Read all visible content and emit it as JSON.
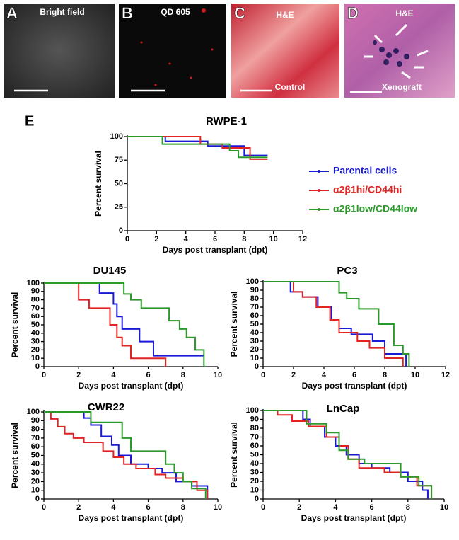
{
  "image_panels": [
    {
      "letter": "A",
      "texts": [
        "Bright field"
      ]
    },
    {
      "letter": "B",
      "texts": [
        "QD 605"
      ]
    },
    {
      "letter": "C",
      "texts": [
        "H&E",
        "Control"
      ]
    },
    {
      "letter": "D",
      "texts": [
        "H&E",
        "Xenograft"
      ]
    }
  ],
  "panel_label": "E",
  "chart_data": [
    {
      "type": "step",
      "title": "RWPE-1",
      "x_label": "Days post transplant (dpt)",
      "y_label": "Percent survival",
      "xlim": [
        0,
        12
      ],
      "xticks": [
        0,
        2,
        4,
        6,
        8,
        10,
        12
      ],
      "ylim": [
        0,
        100
      ],
      "yticks": [
        0,
        25,
        50,
        75,
        100
      ],
      "legend": "right",
      "series": [
        {
          "name": "Parental cells",
          "color": "#1a1ad6",
          "x": [
            0,
            2,
            2.6,
            5,
            5.5,
            7.2,
            8,
            9.6
          ],
          "values": [
            100,
            100,
            95,
            95,
            90,
            90,
            80,
            80
          ]
        },
        {
          "name": "α2β1hi/CD44hi",
          "color": "#e02424",
          "x": [
            0,
            2.5,
            5,
            6.5,
            8.4,
            9.6
          ],
          "values": [
            100,
            100,
            92,
            88,
            76,
            76
          ]
        },
        {
          "name": "α2β1low/CD44low",
          "color": "#2a9a2a",
          "x": [
            0,
            2,
            2.4,
            5,
            7,
            7.6,
            9.6
          ],
          "values": [
            100,
            100,
            92,
            92,
            85,
            78,
            78
          ]
        }
      ]
    },
    {
      "type": "step",
      "title": "DU145",
      "x_label": "Days post transplant (dpt)",
      "y_label": "Percent survival",
      "xlim": [
        0,
        10
      ],
      "xticks": [
        0,
        2,
        4,
        6,
        8,
        10
      ],
      "ylim": [
        0,
        100
      ],
      "yticks": [
        0,
        10,
        20,
        30,
        40,
        50,
        60,
        70,
        80,
        90,
        100
      ],
      "series": [
        {
          "color": "#1a1ad6",
          "x": [
            0,
            3.2,
            4.0,
            4.2,
            4.5,
            5.5,
            6.3,
            9.2
          ],
          "values": [
            100,
            88,
            75,
            60,
            45,
            30,
            13,
            13
          ]
        },
        {
          "color": "#e02424",
          "x": [
            0,
            2.0,
            2.6,
            3.8,
            4.2,
            4.5,
            5.0,
            7.0
          ],
          "values": [
            100,
            80,
            70,
            50,
            35,
            25,
            10,
            0
          ]
        },
        {
          "color": "#2a9a2a",
          "x": [
            0,
            4.6,
            5.0,
            5.6,
            7.2,
            7.8,
            8.2,
            8.7,
            9.2
          ],
          "values": [
            100,
            87,
            80,
            70,
            55,
            45,
            35,
            20,
            0
          ]
        }
      ]
    },
    {
      "type": "step",
      "title": "PC3",
      "x_label": "Days post transplant (dpt)",
      "y_label": "Percent survival",
      "xlim": [
        0,
        12
      ],
      "xticks": [
        0,
        2,
        4,
        6,
        8,
        10,
        12
      ],
      "ylim": [
        0,
        100
      ],
      "yticks": [
        0,
        10,
        20,
        30,
        40,
        50,
        60,
        70,
        80,
        90,
        100
      ],
      "series": [
        {
          "color": "#1a1ad6",
          "x": [
            0,
            1.8,
            2.6,
            3.6,
            4.5,
            5.0,
            5.8,
            7.2,
            8.0,
            9.4
          ],
          "values": [
            100,
            88,
            82,
            70,
            55,
            45,
            38,
            30,
            15,
            0
          ]
        },
        {
          "color": "#e02424",
          "x": [
            0,
            2,
            2.6,
            3.5,
            4.4,
            5.0,
            6.2,
            7.0,
            8.0,
            9.2
          ],
          "values": [
            100,
            88,
            82,
            70,
            55,
            40,
            30,
            22,
            10,
            0
          ]
        },
        {
          "color": "#2a9a2a",
          "x": [
            0,
            5.0,
            5.5,
            6.3,
            7.6,
            8.6,
            9.2,
            9.6
          ],
          "values": [
            100,
            87,
            80,
            68,
            50,
            25,
            15,
            0
          ]
        }
      ]
    },
    {
      "type": "step",
      "title": "CWR22",
      "x_label": "Days post transplant (dpt)",
      "y_label": "Percent survival",
      "xlim": [
        0,
        10
      ],
      "xticks": [
        0,
        2,
        4,
        6,
        8,
        10
      ],
      "ylim": [
        0,
        100
      ],
      "yticks": [
        0,
        10,
        20,
        30,
        40,
        50,
        60,
        70,
        80,
        90,
        100
      ],
      "series": [
        {
          "color": "#1a1ad6",
          "x": [
            0,
            2.3,
            2.7,
            3.3,
            3.9,
            4.3,
            5.0,
            6.0,
            6.8,
            7.6,
            8.5,
            9.4
          ],
          "values": [
            100,
            93,
            85,
            72,
            62,
            50,
            40,
            35,
            30,
            20,
            15,
            0
          ]
        },
        {
          "color": "#e02424",
          "x": [
            0,
            0.4,
            0.8,
            1.2,
            1.7,
            2.3,
            3.4,
            4.0,
            4.6,
            5.3,
            6.4,
            7.0,
            8.0,
            8.8,
            9.4
          ],
          "values": [
            100,
            92,
            83,
            75,
            70,
            65,
            55,
            48,
            40,
            35,
            28,
            24,
            20,
            10,
            0
          ]
        },
        {
          "color": "#2a9a2a",
          "x": [
            0,
            2.7,
            4.5,
            5.0,
            7.0,
            7.5,
            8.0,
            8.5,
            9.3
          ],
          "values": [
            100,
            88,
            70,
            55,
            40,
            30,
            20,
            12,
            0
          ]
        }
      ]
    },
    {
      "type": "step",
      "title": "LnCap",
      "x_label": "Days post transplant (dpt)",
      "y_label": "Percent survival",
      "xlim": [
        0,
        10
      ],
      "xticks": [
        0,
        2,
        4,
        6,
        8,
        10
      ],
      "ylim": [
        0,
        100
      ],
      "yticks": [
        0,
        10,
        20,
        30,
        40,
        50,
        60,
        70,
        80,
        90,
        100
      ],
      "series": [
        {
          "color": "#1a1ad6",
          "x": [
            0,
            2.2,
            2.6,
            3.4,
            4.0,
            4.6,
            5.3,
            6.0,
            7.0,
            8.0,
            8.8,
            9.1
          ],
          "values": [
            100,
            90,
            82,
            70,
            60,
            50,
            40,
            35,
            30,
            20,
            10,
            0
          ]
        },
        {
          "color": "#e02424",
          "x": [
            0,
            0.8,
            1.6,
            2.5,
            3.5,
            4.2,
            4.7,
            5.3,
            6.7,
            7.6,
            8.5,
            9.3
          ],
          "values": [
            100,
            95,
            88,
            82,
            70,
            60,
            45,
            35,
            30,
            25,
            15,
            0
          ]
        },
        {
          "color": "#2a9a2a",
          "x": [
            0,
            2.4,
            3.5,
            4.2,
            4.7,
            5.6,
            7.6,
            8.6,
            9.3
          ],
          "values": [
            100,
            85,
            75,
            55,
            45,
            40,
            25,
            15,
            0
          ]
        }
      ]
    }
  ]
}
